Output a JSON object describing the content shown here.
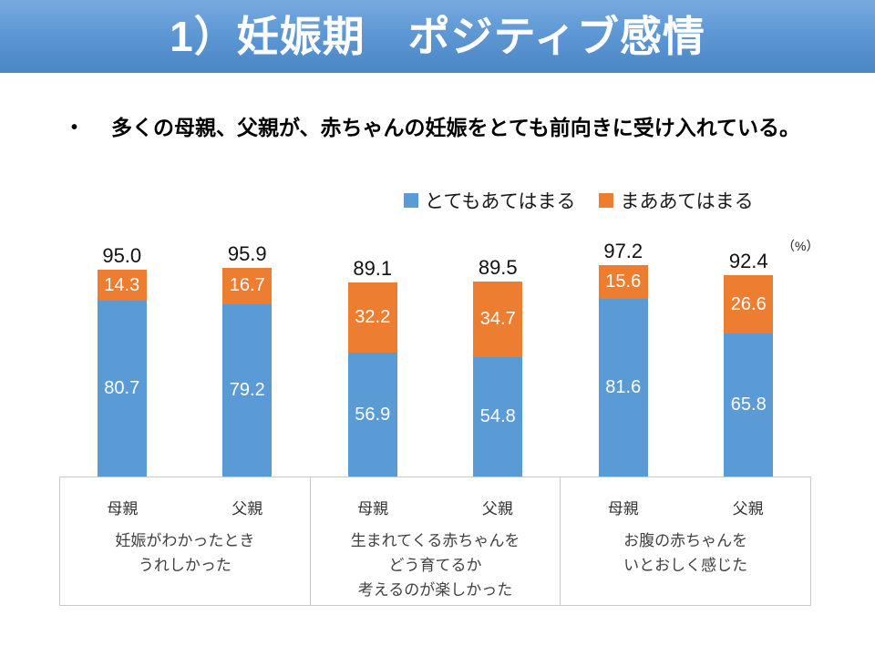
{
  "title": "1）妊娠期　ポジティブ感情",
  "bullet": {
    "marker": "•",
    "text": "多くの母親、父親が、赤ちゃんの妊娠をとても前向きに受け入れている。"
  },
  "unit_label": "（%）",
  "colors": {
    "banner_top": "#78AADF",
    "banner_bottom": "#4A86C5",
    "series_very": "#5B9BD5",
    "series_somewhat": "#ED7D31",
    "axis_border": "#C9C9C9",
    "title_text": "#FFFFFF"
  },
  "chart_data": {
    "type": "bar",
    "stacked": true,
    "unit": "%",
    "ylim": [
      0,
      100
    ],
    "gridlines": false,
    "legend_position": "top",
    "series_names": [
      "とてもあてはまる",
      "まああてはまる"
    ],
    "groups": [
      {
        "category_lines": "妊娠がわかったとき\nうれしかった",
        "bars": [
          {
            "label": "母親",
            "very": 80.7,
            "somewhat": 14.3,
            "total": 95.0
          },
          {
            "label": "父親",
            "very": 79.2,
            "somewhat": 16.7,
            "total": 95.9
          }
        ]
      },
      {
        "category_lines": "生まれてくる赤ちゃんを\nどう育てるか\n考えるのが楽しかった",
        "bars": [
          {
            "label": "母親",
            "very": 56.9,
            "somewhat": 32.2,
            "total": 89.1
          },
          {
            "label": "父親",
            "very": 54.8,
            "somewhat": 34.7,
            "total": 89.5
          }
        ]
      },
      {
        "category_lines": "お腹の赤ちゃんを\nいとおしく感じた",
        "bars": [
          {
            "label": "母親",
            "very": 81.6,
            "somewhat": 15.6,
            "total": 97.2
          },
          {
            "label": "父親",
            "very": 65.8,
            "somewhat": 26.6,
            "total": 92.4
          }
        ]
      }
    ]
  }
}
